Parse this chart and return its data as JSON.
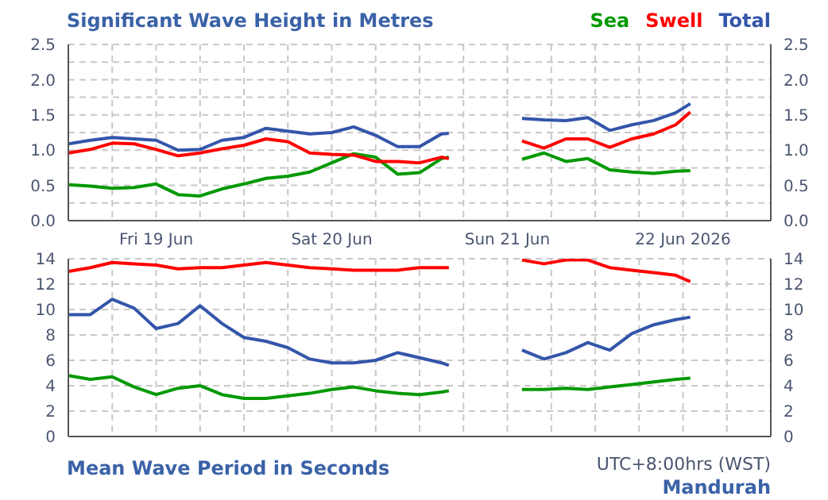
{
  "chart_data": [
    {
      "type": "line",
      "title": "Significant Wave Height in Metres",
      "x": [
        "2026-06-19T00:00",
        "2026-06-19T03:00",
        "2026-06-19T06:00",
        "2026-06-19T09:00",
        "2026-06-19T12:00",
        "2026-06-19T15:00",
        "2026-06-19T18:00",
        "2026-06-19T21:00",
        "2026-06-20T00:00",
        "2026-06-20T03:00",
        "2026-06-20T06:00",
        "2026-06-20T09:00",
        "2026-06-20T12:00",
        "2026-06-20T15:00",
        "2026-06-20T18:00",
        "2026-06-20T21:00",
        "2026-06-21T00:00",
        "2026-06-21T03:00",
        "2026-06-21T04:00",
        "2026-06-21T09:00",
        "2026-06-21T14:00",
        "2026-06-21T17:00",
        "2026-06-21T20:00",
        "2026-06-21T23:00",
        "2026-06-22T02:00",
        "2026-06-22T05:00",
        "2026-06-22T08:00",
        "2026-06-22T11:00",
        "2026-06-22T13:00"
      ],
      "series": [
        {
          "name": "Sea",
          "color": "#009900",
          "values": [
            0.51,
            0.49,
            0.46,
            0.47,
            0.52,
            0.37,
            0.35,
            0.45,
            0.52,
            0.6,
            0.63,
            0.69,
            0.82,
            0.95,
            0.9,
            0.66,
            0.68,
            0.88,
            0.9,
            null,
            0.87,
            0.96,
            0.84,
            0.88,
            0.72,
            0.69,
            0.67,
            0.7,
            0.71
          ]
        },
        {
          "name": "Swell",
          "color": "#ff0000",
          "values": [
            0.96,
            1.01,
            1.1,
            1.09,
            1.01,
            0.92,
            0.96,
            1.02,
            1.07,
            1.16,
            1.12,
            0.96,
            0.94,
            0.93,
            0.84,
            0.84,
            0.82,
            0.9,
            0.88,
            null,
            1.13,
            1.03,
            1.16,
            1.16,
            1.04,
            1.16,
            1.23,
            1.36,
            1.54
          ]
        },
        {
          "name": "Total",
          "color": "#3355aa",
          "values": [
            1.09,
            1.14,
            1.18,
            1.16,
            1.14,
            1.0,
            1.01,
            1.14,
            1.18,
            1.31,
            1.27,
            1.23,
            1.25,
            1.33,
            1.21,
            1.05,
            1.05,
            1.23,
            1.24,
            null,
            1.45,
            1.43,
            1.42,
            1.46,
            1.28,
            1.36,
            1.42,
            1.53,
            1.66
          ]
        }
      ],
      "xlim": [
        "2026-06-19T00:00",
        "2026-06-23T00:00"
      ],
      "xticks": [
        {
          "value": "2026-06-19T06:00",
          "label": null
        },
        {
          "value": "2026-06-19T12:00",
          "label": "Fri 19 Jun"
        },
        {
          "value": "2026-06-19T18:00",
          "label": null
        },
        {
          "value": "2026-06-20T00:00",
          "label": null
        },
        {
          "value": "2026-06-20T06:00",
          "label": null
        },
        {
          "value": "2026-06-20T12:00",
          "label": "Sat 20 Jun"
        },
        {
          "value": "2026-06-20T18:00",
          "label": null
        },
        {
          "value": "2026-06-21T00:00",
          "label": null
        },
        {
          "value": "2026-06-21T06:00",
          "label": null
        },
        {
          "value": "2026-06-21T12:00",
          "label": "Sun 21 Jun"
        },
        {
          "value": "2026-06-21T18:00",
          "label": null
        },
        {
          "value": "2026-06-22T00:00",
          "label": null
        },
        {
          "value": "2026-06-22T06:00",
          "label": null
        },
        {
          "value": "2026-06-22T12:00",
          "label": "22 Jun 2026"
        },
        {
          "value": "2026-06-22T18:00",
          "label": null
        }
      ],
      "ylim": [
        0,
        2.5
      ],
      "yticks": [
        {
          "value": 0,
          "label": "0.0"
        },
        {
          "value": 0.25,
          "label": null
        },
        {
          "value": 0.5,
          "label": "0.5"
        },
        {
          "value": 0.75,
          "label": null
        },
        {
          "value": 1,
          "label": "1.0"
        },
        {
          "value": 1.25,
          "label": null
        },
        {
          "value": 1.5,
          "label": "1.5"
        },
        {
          "value": 1.75,
          "label": null
        },
        {
          "value": 2,
          "label": "2.0"
        },
        {
          "value": 2.25,
          "label": null
        },
        {
          "value": 2.5,
          "label": "2.5"
        }
      ],
      "y2lim": [
        0,
        2.5
      ],
      "y2ticks": [
        {
          "value": 0,
          "label": "0.0"
        },
        {
          "value": 0.5,
          "label": "0.5"
        },
        {
          "value": 1,
          "label": "1.0"
        },
        {
          "value": 1.5,
          "label": "1.5"
        },
        {
          "value": 2,
          "label": "2.0"
        },
        {
          "value": 2.5,
          "label": "2.5"
        }
      ],
      "grid": true,
      "legend": "top right",
      "marker": "none",
      "line_style": "solid"
    },
    {
      "type": "line",
      "title": "Mean Wave Period in Seconds",
      "annotations": [
        "UTC+8:00hrs (WST)",
        "Mandurah"
      ],
      "x": [
        "2026-06-19T00:00",
        "2026-06-19T03:00",
        "2026-06-19T06:00",
        "2026-06-19T09:00",
        "2026-06-19T12:00",
        "2026-06-19T15:00",
        "2026-06-19T18:00",
        "2026-06-19T21:00",
        "2026-06-20T00:00",
        "2026-06-20T03:00",
        "2026-06-20T06:00",
        "2026-06-20T09:00",
        "2026-06-20T12:00",
        "2026-06-20T15:00",
        "2026-06-20T18:00",
        "2026-06-20T21:00",
        "2026-06-21T00:00",
        "2026-06-21T03:00",
        "2026-06-21T04:00",
        "2026-06-21T09:00",
        "2026-06-21T14:00",
        "2026-06-21T17:00",
        "2026-06-21T20:00",
        "2026-06-21T23:00",
        "2026-06-22T02:00",
        "2026-06-22T05:00",
        "2026-06-22T08:00",
        "2026-06-22T11:00",
        "2026-06-22T13:00"
      ],
      "series": [
        {
          "color": "#009900",
          "values": [
            4.8,
            4.5,
            4.7,
            3.9,
            3.3,
            3.8,
            4.0,
            3.3,
            3.0,
            3.0,
            3.2,
            3.4,
            3.7,
            3.9,
            3.6,
            3.4,
            3.3,
            3.5,
            3.6,
            null,
            3.7,
            3.7,
            3.8,
            3.7,
            3.9,
            4.1,
            4.3,
            4.5,
            4.6
          ]
        },
        {
          "color": "#ff0000",
          "values": [
            13.0,
            13.3,
            13.7,
            13.6,
            13.5,
            13.2,
            13.3,
            13.3,
            13.5,
            13.7,
            13.5,
            13.3,
            13.2,
            13.1,
            13.1,
            13.1,
            13.3,
            13.3,
            13.3,
            null,
            13.9,
            13.6,
            13.9,
            13.9,
            13.3,
            13.1,
            12.9,
            12.7,
            12.2
          ]
        },
        {
          "color": "#3355aa",
          "values": [
            9.6,
            9.6,
            10.8,
            10.1,
            8.5,
            8.9,
            10.3,
            8.9,
            7.8,
            7.5,
            7.0,
            6.1,
            5.8,
            5.8,
            6.0,
            6.6,
            6.2,
            5.8,
            5.6,
            null,
            6.8,
            6.1,
            6.6,
            7.4,
            6.8,
            8.1,
            8.8,
            9.2,
            9.4
          ]
        }
      ],
      "xlim": [
        "2026-06-19T00:00",
        "2026-06-23T00:00"
      ],
      "xticks": [
        {
          "value": "2026-06-19T06:00",
          "label": null
        },
        {
          "value": "2026-06-19T12:00",
          "label": null
        },
        {
          "value": "2026-06-19T18:00",
          "label": null
        },
        {
          "value": "2026-06-20T00:00",
          "label": null
        },
        {
          "value": "2026-06-20T06:00",
          "label": null
        },
        {
          "value": "2026-06-20T12:00",
          "label": null
        },
        {
          "value": "2026-06-20T18:00",
          "label": null
        },
        {
          "value": "2026-06-21T00:00",
          "label": null
        },
        {
          "value": "2026-06-21T06:00",
          "label": null
        },
        {
          "value": "2026-06-21T12:00",
          "label": null
        },
        {
          "value": "2026-06-21T18:00",
          "label": null
        },
        {
          "value": "2026-06-22T00:00",
          "label": null
        },
        {
          "value": "2026-06-22T06:00",
          "label": null
        },
        {
          "value": "2026-06-22T12:00",
          "label": null
        },
        {
          "value": "2026-06-22T18:00",
          "label": null
        }
      ],
      "ylim": [
        0,
        14
      ],
      "yticks": [
        0,
        2,
        4,
        6,
        8,
        10,
        12,
        14
      ],
      "y2lim": [
        0,
        14
      ],
      "y2ticks": [
        0,
        2,
        4,
        6,
        8,
        10,
        12,
        14
      ],
      "grid": true,
      "tick_labels": "y",
      "marker": "none",
      "line_style": "solid"
    }
  ]
}
